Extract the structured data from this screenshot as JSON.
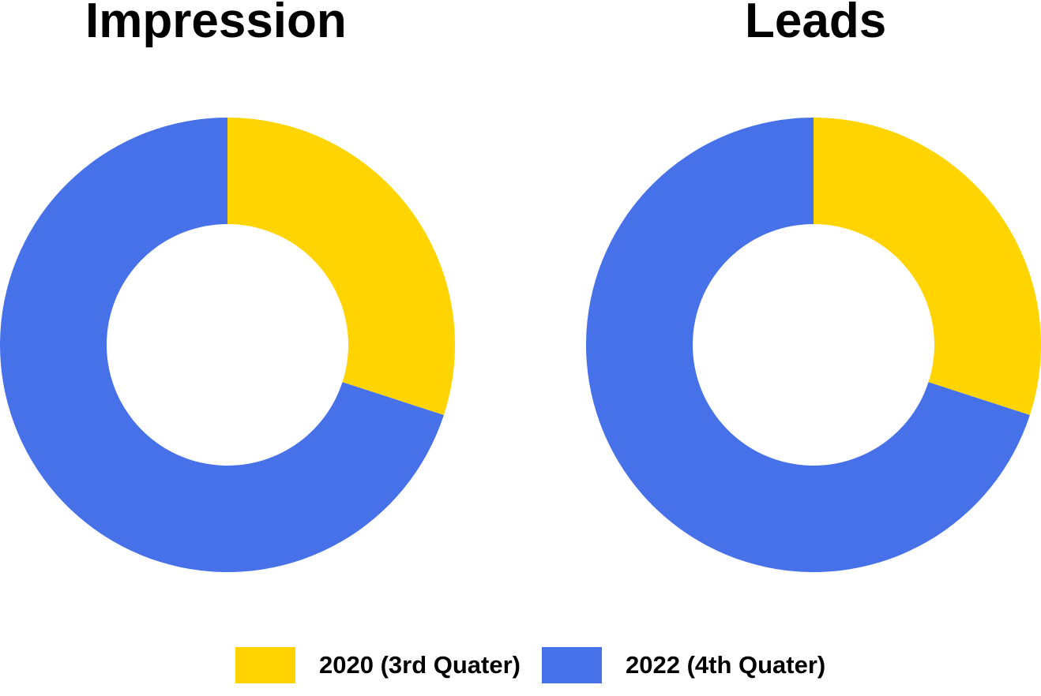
{
  "chart_data": [
    {
      "type": "pie",
      "variant": "donut",
      "title": "Impression",
      "categories": [
        "2020 (3rd Quater)",
        "2022 (4th Quater)"
      ],
      "values": [
        30,
        70
      ],
      "colors": [
        "#FFD400",
        "#4671E8"
      ]
    },
    {
      "type": "pie",
      "variant": "donut",
      "title": "Leads",
      "categories": [
        "2020 (3rd Quater)",
        "2022 (4th Quater)"
      ],
      "values": [
        30,
        70
      ],
      "colors": [
        "#FFD400",
        "#4671E8"
      ]
    }
  ],
  "legend": {
    "placement": "bottom-center",
    "items": [
      {
        "label": "2020 (3rd Quater)",
        "color": "#FFD400"
      },
      {
        "label": "2022 (4th Quater)",
        "color": "#4671E8"
      }
    ]
  }
}
